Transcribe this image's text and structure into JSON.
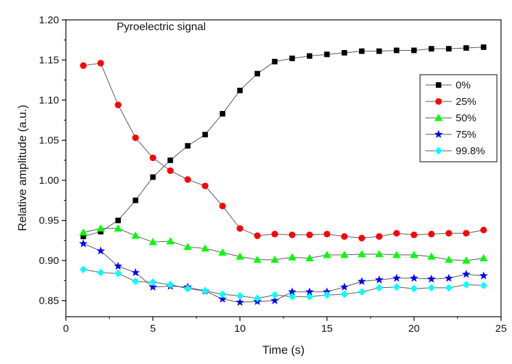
{
  "chart_data": {
    "type": "line",
    "annotation": "Pyroelectric signal",
    "xlabel": "Time (s)",
    "ylabel": "Relative amplitude (a.u.)",
    "xlim": [
      0,
      25
    ],
    "ylim": [
      0.83,
      1.2
    ],
    "xticks": [
      0,
      5,
      10,
      15,
      20,
      25
    ],
    "yticks": [
      0.85,
      0.9,
      0.95,
      1.0,
      1.05,
      1.1,
      1.15,
      1.2
    ],
    "xtick_labels": [
      "0",
      "5",
      "10",
      "15",
      "20",
      "25"
    ],
    "ytick_labels": [
      "0.85",
      "0.90",
      "0.95",
      "1.00",
      "1.05",
      "1.10",
      "1.15",
      "1.20"
    ],
    "grid": false,
    "legend_position": "right",
    "x": [
      1,
      2,
      3,
      4,
      5,
      6,
      7,
      8,
      9,
      10,
      11,
      12,
      13,
      14,
      15,
      16,
      17,
      18,
      19,
      20,
      21,
      22,
      23,
      24
    ],
    "series": [
      {
        "name": "0%",
        "marker": "square",
        "color": "#000000",
        "values": [
          0.93,
          0.936,
          0.95,
          0.975,
          1.004,
          1.025,
          1.043,
          1.057,
          1.083,
          1.112,
          1.133,
          1.148,
          1.152,
          1.155,
          1.157,
          1.159,
          1.161,
          1.161,
          1.162,
          1.162,
          1.164,
          1.164,
          1.165,
          1.166
        ]
      },
      {
        "name": "25%",
        "marker": "circle",
        "color": "#ff0000",
        "values": [
          1.143,
          1.146,
          1.094,
          1.053,
          1.028,
          1.012,
          1.001,
          0.993,
          0.968,
          0.94,
          0.931,
          0.933,
          0.932,
          0.932,
          0.933,
          0.93,
          0.928,
          0.93,
          0.934,
          0.932,
          0.933,
          0.934,
          0.934,
          0.938
        ]
      },
      {
        "name": "50%",
        "marker": "triangle",
        "color": "#00ff00",
        "values": [
          0.935,
          0.94,
          0.94,
          0.931,
          0.923,
          0.924,
          0.917,
          0.915,
          0.91,
          0.905,
          0.901,
          0.901,
          0.904,
          0.903,
          0.907,
          0.907,
          0.908,
          0.908,
          0.907,
          0.907,
          0.905,
          0.901,
          0.9,
          0.903
        ]
      },
      {
        "name": "75%",
        "marker": "star",
        "color": "#0000ff",
        "values": [
          0.921,
          0.912,
          0.893,
          0.885,
          0.867,
          0.868,
          0.867,
          0.862,
          0.852,
          0.848,
          0.849,
          0.85,
          0.861,
          0.861,
          0.861,
          0.867,
          0.874,
          0.876,
          0.878,
          0.878,
          0.877,
          0.878,
          0.883,
          0.881
        ]
      },
      {
        "name": "99.8%",
        "marker": "diamond",
        "color": "#00ffff",
        "values": [
          0.889,
          0.885,
          0.884,
          0.874,
          0.873,
          0.87,
          0.865,
          0.862,
          0.858,
          0.856,
          0.853,
          0.857,
          0.855,
          0.855,
          0.857,
          0.858,
          0.861,
          0.866,
          0.867,
          0.865,
          0.866,
          0.866,
          0.87,
          0.869
        ]
      }
    ]
  }
}
